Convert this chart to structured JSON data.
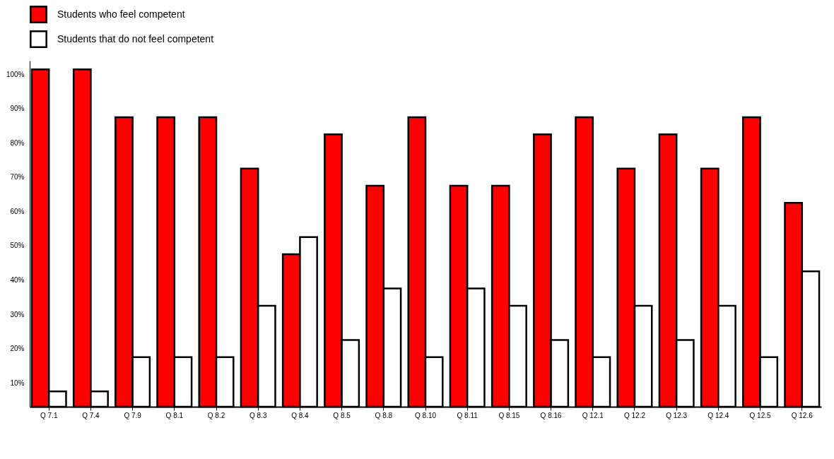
{
  "chart_data": {
    "type": "bar",
    "categories": [
      "Q 7.1",
      "Q 7.4",
      "Q 7.9",
      "Q 8.1",
      "Q 8.2",
      "Q 8.3",
      "Q 8.4",
      "Q 8.5",
      "Q 8.8",
      "Q 8.10",
      "Q 8.11",
      "Q 8.15",
      "Q 8.16",
      "Q 12.1",
      "Q 12.2",
      "Q 12.3",
      "Q 12.4",
      "Q 12.5",
      "Q 12.6"
    ],
    "series": [
      {
        "name": "Students who feel competent",
        "color": "#ff0000",
        "values": [
          101.5,
          101.5,
          87.5,
          87.5,
          87.5,
          72.5,
          47.5,
          82.5,
          67.5,
          87.5,
          67.5,
          67.5,
          82.5,
          87.5,
          72.5,
          82.5,
          72.5,
          87.5,
          62.5
        ]
      },
      {
        "name": "Students that do not feel competent",
        "color": "#ffffff",
        "values": [
          7.5,
          7.5,
          17.5,
          17.5,
          17.5,
          32.5,
          52.5,
          22.5,
          37.5,
          17.5,
          37.5,
          32.5,
          22.5,
          17.5,
          32.5,
          22.5,
          32.5,
          17.5,
          42.5
        ]
      }
    ],
    "ylim": [
      3,
      104
    ],
    "yticks": [
      {
        "value": 10,
        "label": "10%"
      },
      {
        "value": 20,
        "label": "20%"
      },
      {
        "value": 30,
        "label": "30%"
      },
      {
        "value": 40,
        "label": "40%"
      },
      {
        "value": 50,
        "label": "50%"
      },
      {
        "value": 60,
        "label": "60%"
      },
      {
        "value": 70,
        "label": "70%"
      },
      {
        "value": 80,
        "label": "80%"
      },
      {
        "value": 90,
        "label": "90%"
      },
      {
        "value": 100,
        "label": "100%"
      }
    ],
    "grid": false,
    "legend": "top left"
  }
}
